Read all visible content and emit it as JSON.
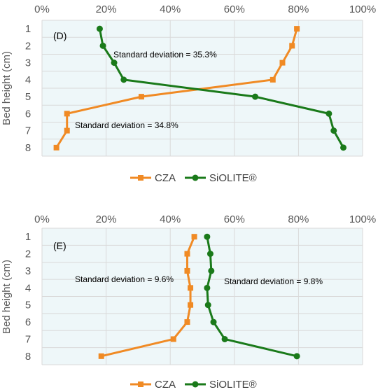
{
  "chart_data": [
    {
      "type": "line",
      "panel_label": "(D)",
      "ylabel": "Bed height (cm)",
      "xlim": [
        0,
        100
      ],
      "x_unit": "%",
      "x_ticks": [
        "0%",
        "20%",
        "40%",
        "60%",
        "80%",
        "100%"
      ],
      "y_categories": [
        "1",
        "2",
        "3",
        "4",
        "5",
        "6",
        "7",
        "8"
      ],
      "plot_background": "#eef7f9",
      "grid": true,
      "legend_position": "bottom",
      "series": [
        {
          "name": "CZA",
          "color": "#f08a24",
          "marker": "square",
          "x": [
            79.5,
            78,
            75,
            72,
            31,
            7.8,
            7.8,
            4.5
          ],
          "y": [
            1,
            2,
            3,
            4,
            5,
            6,
            7,
            8
          ]
        },
        {
          "name": "SiOLITE®",
          "color": "#1a7a1a",
          "marker": "circle",
          "x": [
            18,
            19,
            22.5,
            25.5,
            66.5,
            89.5,
            91,
            94
          ],
          "y": [
            1,
            2,
            3,
            4,
            5,
            6,
            7,
            8
          ]
        }
      ],
      "annotations": [
        {
          "text": "Standard deviation = 35.3%"
        },
        {
          "text": "Standard deviation = 34.8%"
        }
      ]
    },
    {
      "type": "line",
      "panel_label": "(E)",
      "ylabel": "Bed height (cm)",
      "xlim": [
        0,
        100
      ],
      "x_unit": "%",
      "x_ticks": [
        "0%",
        "20%",
        "40%",
        "60%",
        "80%",
        "100%"
      ],
      "y_categories": [
        "1",
        "2",
        "3",
        "4",
        "5",
        "6",
        "7",
        "8"
      ],
      "plot_background": "#eef7f9",
      "grid": true,
      "legend_position": "bottom",
      "series": [
        {
          "name": "CZA",
          "color": "#f08a24",
          "marker": "square",
          "x": [
            47.5,
            45.3,
            45.3,
            46.3,
            46.3,
            45.3,
            41,
            18.5
          ],
          "y": [
            1,
            2,
            3,
            4,
            5,
            6,
            7,
            8
          ]
        },
        {
          "name": "SiOLITE®",
          "color": "#1a7a1a",
          "marker": "circle",
          "x": [
            51.5,
            52.5,
            52.8,
            51.5,
            51.8,
            53.5,
            57,
            79.5
          ],
          "y": [
            1,
            2,
            3,
            4,
            5,
            6,
            7,
            8
          ]
        }
      ],
      "annotations": [
        {
          "text": "Standard deviation = 9.6%"
        },
        {
          "text": "Standard deviation = 9.8%"
        }
      ]
    }
  ]
}
